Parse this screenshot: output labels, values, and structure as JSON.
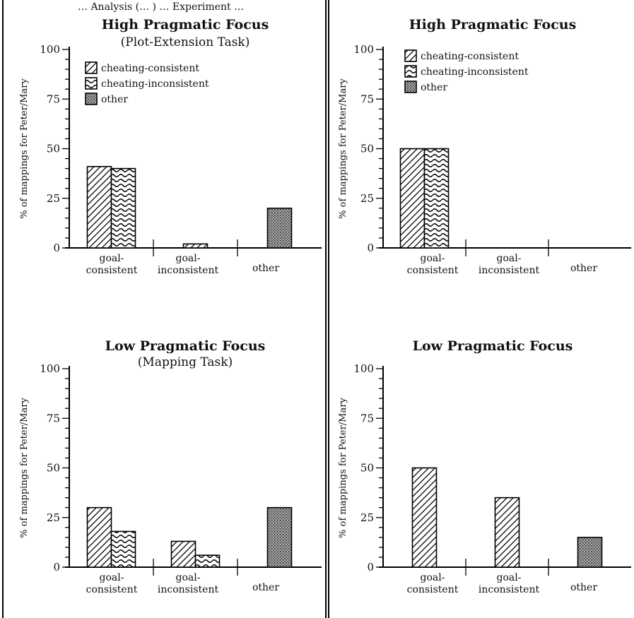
{
  "colors": {
    "ink": "#000000",
    "background": "#ffffff",
    "other_fill": "#8a8a8a"
  },
  "header_text": "… Analysis (… ) … Experiment …",
  "legend": {
    "patterns": [
      "diagonal-hatch",
      "wavy-hatch",
      "dense-dot-stipple"
    ]
  },
  "chart_data": [
    {
      "type": "bar",
      "title": "High Pragmatic Focus",
      "subtitle": "(Plot-Extension Task)",
      "ylabel": "% of mappings for Peter/Mary",
      "ylim": [
        0,
        100
      ],
      "yticks": [
        0,
        25,
        50,
        75,
        100
      ],
      "categories": [
        "goal-consistent",
        "goal-inconsistent",
        "other"
      ],
      "category_lines": [
        [
          "goal-",
          "consistent"
        ],
        [
          "goal-",
          "inconsistent"
        ],
        [
          "other"
        ]
      ],
      "legend_entries": [
        "cheating-consistent",
        "cheating-inconsistent",
        "other"
      ],
      "series": [
        {
          "name": "cheating-consistent",
          "pattern": "diagonal-hatch",
          "values": [
            41,
            2,
            null
          ]
        },
        {
          "name": "cheating-inconsistent",
          "pattern": "wavy-hatch",
          "values": [
            40,
            null,
            null
          ]
        },
        {
          "name": "other",
          "pattern": "dense-dot-stipple",
          "values": [
            null,
            null,
            20
          ]
        }
      ]
    },
    {
      "type": "bar",
      "title": "High Pragmatic Focus",
      "subtitle": "",
      "ylabel": "% of mappings for Peter/Mary",
      "ylim": [
        0,
        100
      ],
      "yticks": [
        0,
        25,
        50,
        75,
        100
      ],
      "categories": [
        "goal-consistent",
        "goal-inconsistent",
        "other"
      ],
      "category_lines": [
        [
          "goal-",
          "consistent"
        ],
        [
          "goal-",
          "inconsistent"
        ],
        [
          "other"
        ]
      ],
      "legend_entries": [
        "cheating-consistent",
        "cheating-inconsistent",
        "other"
      ],
      "series": [
        {
          "name": "cheating-consistent",
          "pattern": "diagonal-hatch",
          "values": [
            50,
            null,
            null
          ]
        },
        {
          "name": "cheating-inconsistent",
          "pattern": "wavy-hatch",
          "values": [
            50,
            null,
            null
          ]
        },
        {
          "name": "other",
          "pattern": "dense-dot-stipple",
          "values": [
            null,
            null,
            null
          ]
        }
      ]
    },
    {
      "type": "bar",
      "title": "Low Pragmatic Focus",
      "subtitle": "(Mapping Task)",
      "ylabel": "% of mappings for Peter/Mary",
      "ylim": [
        0,
        100
      ],
      "yticks": [
        0,
        25,
        50,
        75,
        100
      ],
      "categories": [
        "goal-consistent",
        "goal-inconsistent",
        "other"
      ],
      "category_lines": [
        [
          "goal-",
          "consistent"
        ],
        [
          "goal-",
          "inconsistent"
        ],
        [
          "other"
        ]
      ],
      "legend_entries": [],
      "series": [
        {
          "name": "cheating-consistent",
          "pattern": "diagonal-hatch",
          "values": [
            30,
            13,
            null
          ]
        },
        {
          "name": "cheating-inconsistent",
          "pattern": "wavy-hatch",
          "values": [
            18,
            6,
            null
          ]
        },
        {
          "name": "other",
          "pattern": "dense-dot-stipple",
          "values": [
            null,
            null,
            30
          ]
        }
      ]
    },
    {
      "type": "bar",
      "title": "Low Pragmatic Focus",
      "subtitle": "",
      "ylabel": "% of mappings for Peter/Mary",
      "ylim": [
        0,
        100
      ],
      "yticks": [
        0,
        25,
        50,
        75,
        100
      ],
      "categories": [
        "goal-consistent",
        "goal-inconsistent",
        "other"
      ],
      "category_lines": [
        [
          "goal-",
          "consistent"
        ],
        [
          "goal-",
          "inconsistent"
        ],
        [
          "other"
        ]
      ],
      "legend_entries": [],
      "series": [
        {
          "name": "cheating-consistent",
          "pattern": "diagonal-hatch",
          "values": [
            50,
            35,
            null
          ]
        },
        {
          "name": "cheating-inconsistent",
          "pattern": "wavy-hatch",
          "values": [
            null,
            null,
            null
          ]
        },
        {
          "name": "other",
          "pattern": "dense-dot-stipple",
          "values": [
            null,
            null,
            15
          ]
        }
      ]
    }
  ]
}
